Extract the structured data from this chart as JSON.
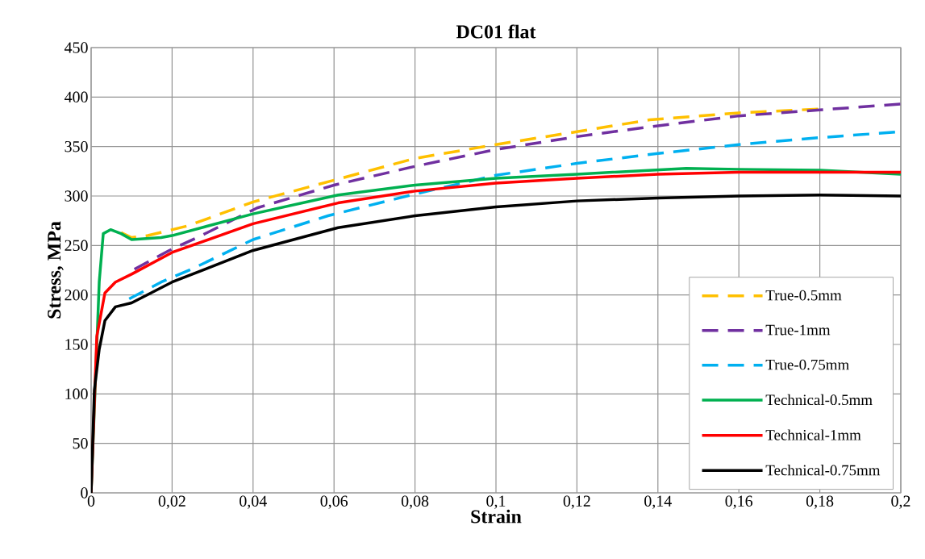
{
  "chart_data": {
    "type": "line",
    "title": "DC01 flat",
    "xlabel": "Strain",
    "ylabel": "Stress, MPa",
    "xlim": [
      0,
      0.2
    ],
    "ylim": [
      0,
      450
    ],
    "xticks": [
      {
        "value": 0,
        "label": "0"
      },
      {
        "value": 0.02,
        "label": "0,02"
      },
      {
        "value": 0.04,
        "label": "0,04"
      },
      {
        "value": 0.06,
        "label": "0,06"
      },
      {
        "value": 0.08,
        "label": "0,08"
      },
      {
        "value": 0.1,
        "label": "0,1"
      },
      {
        "value": 0.12,
        "label": "0,12"
      },
      {
        "value": 0.14,
        "label": "0,14"
      },
      {
        "value": 0.16,
        "label": "0,16"
      },
      {
        "value": 0.18,
        "label": "0,18"
      },
      {
        "value": 0.2,
        "label": "0,2"
      }
    ],
    "yticks": [
      0,
      50,
      100,
      150,
      200,
      250,
      300,
      350,
      400,
      450
    ],
    "grid": true,
    "legend": "bottom right",
    "marker": "none",
    "series": [
      {
        "name": "True-0.5mm",
        "color": "#ffc000",
        "line_style": "dashed",
        "x": [
          0.0074,
          0.01,
          0.014,
          0.024,
          0.04,
          0.06,
          0.08,
          0.1,
          0.12,
          0.138,
          0.16,
          0.18
        ],
        "values": [
          263,
          258,
          260,
          270,
          294,
          316,
          338,
          352,
          365,
          377,
          384,
          388
        ]
      },
      {
        "name": "True-1mm",
        "color": "#7030a0",
        "line_style": "dashed",
        "x": [
          0.0107,
          0.0193,
          0.0267,
          0.041,
          0.06,
          0.08,
          0.1,
          0.12,
          0.14,
          0.16,
          0.18,
          0.2
        ],
        "values": [
          226,
          245,
          259,
          288,
          311,
          330,
          347,
          360,
          371,
          381,
          387,
          393
        ]
      },
      {
        "name": "True-0.75mm",
        "color": "#00b0f0",
        "line_style": "dashed",
        "x": [
          0.0094,
          0.0173,
          0.0253,
          0.04,
          0.0585,
          0.08,
          0.1,
          0.12,
          0.14,
          0.16,
          0.18,
          0.2
        ],
        "values": [
          196,
          213,
          227,
          256,
          280,
          302,
          321,
          333,
          343,
          352,
          359,
          365
        ]
      },
      {
        "name": "Technical-0.5mm",
        "color": "#00b050",
        "line_style": "solid",
        "x": [
          0,
          0.002,
          0.003,
          0.0048,
          0.0074,
          0.01,
          0.0173,
          0.02,
          0.04,
          0.061,
          0.08,
          0.1,
          0.12,
          0.147,
          0.16,
          0.18,
          0.2
        ],
        "values": [
          0,
          213,
          262,
          266,
          262,
          256,
          258,
          260,
          282,
          301,
          311,
          318,
          322,
          328,
          327,
          326,
          322
        ]
      },
      {
        "name": "Technical-1mm",
        "color": "#ff0000",
        "line_style": "solid",
        "x": [
          0,
          0.0014,
          0.0034,
          0.006,
          0.01,
          0.02,
          0.04,
          0.061,
          0.08,
          0.1,
          0.12,
          0.14,
          0.16,
          0.18,
          0.2
        ],
        "values": [
          0,
          158,
          202,
          213,
          221,
          243,
          272,
          293,
          305,
          313,
          318,
          322,
          324,
          324,
          324
        ]
      },
      {
        "name": "Technical-0.75mm",
        "color": "#000000",
        "line_style": "solid",
        "x": [
          0,
          0.0008,
          0.002,
          0.0034,
          0.006,
          0.01,
          0.02,
          0.04,
          0.061,
          0.08,
          0.1,
          0.12,
          0.14,
          0.16,
          0.18,
          0.2
        ],
        "values": [
          0,
          104,
          145,
          174,
          188,
          192,
          213,
          245,
          268,
          280,
          289,
          295,
          298,
          300,
          301,
          300
        ]
      }
    ]
  }
}
